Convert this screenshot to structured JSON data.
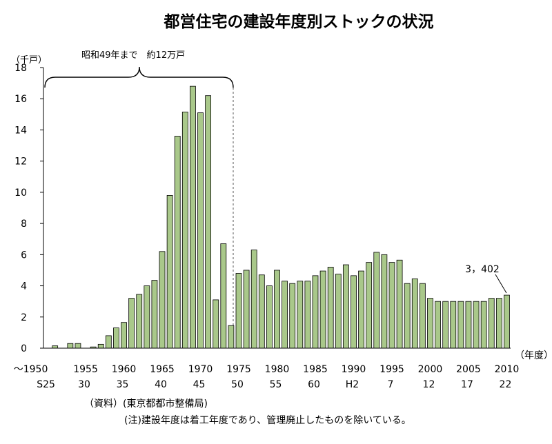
{
  "chart_data": {
    "type": "bar",
    "title": "都営住宅の建設年度別ストックの状況",
    "ylabel": "（千戸）",
    "xlabel": "（年度）",
    "ylim": [
      0,
      18
    ],
    "yticks": [
      "0",
      "2",
      "4",
      "6",
      "8",
      "10",
      "12",
      "14",
      "16",
      "18"
    ],
    "grid": false,
    "xticks_year": [
      "～1950",
      "1955",
      "1960",
      "1965",
      "1970",
      "1975",
      "1980",
      "1985",
      "1990",
      "1995",
      "2000",
      "2005",
      "2010"
    ],
    "xticks_era": [
      "S25",
      "30",
      "35",
      "40",
      "45",
      "50",
      "55",
      "60",
      "H2",
      "7",
      "12",
      "17",
      "22"
    ],
    "categories": [
      1950,
      1951,
      1952,
      1953,
      1954,
      1955,
      1956,
      1957,
      1958,
      1959,
      1960,
      1961,
      1962,
      1963,
      1964,
      1965,
      1966,
      1967,
      1968,
      1969,
      1970,
      1971,
      1972,
      1973,
      1974,
      1975,
      1976,
      1977,
      1978,
      1979,
      1980,
      1981,
      1982,
      1983,
      1984,
      1985,
      1986,
      1987,
      1988,
      1989,
      1990,
      1991,
      1992,
      1993,
      1994,
      1995,
      1996,
      1997,
      1998,
      1999,
      2000,
      2001,
      2002,
      2003,
      2004,
      2005,
      2006,
      2007,
      2008,
      2009,
      2010
    ],
    "values": [
      0.0,
      0.15,
      0.0,
      0.3,
      0.3,
      0.0,
      0.08,
      0.25,
      0.8,
      1.3,
      1.65,
      3.2,
      3.45,
      4.0,
      4.35,
      6.2,
      9.8,
      13.6,
      15.15,
      16.8,
      15.1,
      16.2,
      3.1,
      6.7,
      1.45,
      4.8,
      5.0,
      6.3,
      4.7,
      4.0,
      5.0,
      4.3,
      4.15,
      4.3,
      4.3,
      4.65,
      4.95,
      5.2,
      4.75,
      5.35,
      4.65,
      4.95,
      5.5,
      6.15,
      6.0,
      5.5,
      5.65,
      4.15,
      4.45,
      4.15,
      3.2,
      3.0,
      3.0,
      3.0,
      3.0,
      3.0,
      3.0,
      3.0,
      3.2,
      3.2,
      3.402
    ],
    "bracket_note": "昭和49年まで　約12万戸",
    "last_value_label": "3，402",
    "bar_color": "#a9c88a",
    "bar_edge": "#000000"
  },
  "source": "（資料）(東京都都市整備局)",
  "note": "(注)建設年度は着工年度であり、管理廃止したものを除いている。"
}
